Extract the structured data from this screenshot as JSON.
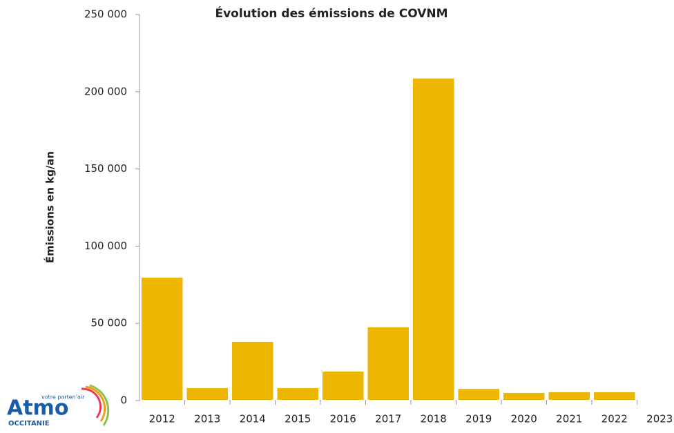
{
  "chart_data": {
    "type": "bar",
    "title": "Évolution des émissions de COVNM",
    "y_label": "Émissions en kg/an",
    "categories": [
      "2012",
      "2013",
      "2014",
      "2015",
      "2016",
      "2017",
      "2018",
      "2019",
      "2020",
      "2021",
      "2022",
      "2023"
    ],
    "values": [
      80000,
      8500,
      38500,
      8500,
      19200,
      47900,
      209000,
      8000,
      5400,
      5800,
      5800,
      500
    ],
    "color": "#edb600",
    "ylim": [
      0,
      250000
    ],
    "yticks": [
      0,
      {
        "value": 50000,
        "label": "50 000"
      },
      {
        "value": 100000,
        "label": "100 000"
      },
      {
        "value": 150000,
        "label": "150 000"
      },
      {
        "value": 200000,
        "label": "200 000"
      },
      {
        "value": 250000,
        "label": "250 000"
      }
    ],
    "grid": false
  },
  "logo": {
    "tagline": "votre parten'air",
    "name": "Atmo",
    "region": "OCCITANIE"
  }
}
